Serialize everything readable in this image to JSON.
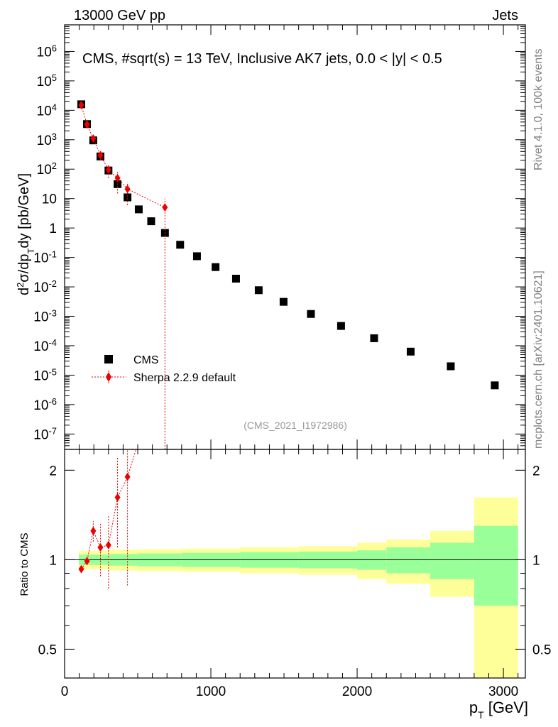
{
  "header": {
    "left": "13000 GeV pp",
    "right": "Jets",
    "side_top": "Rivet 4.1.0,  100k events",
    "side_bottom": "mcplots.cern.ch [arXiv:2401.10621]"
  },
  "colors": {
    "cms": "#000000",
    "sherpa": "#ee0000",
    "band_inner": "#99ff99",
    "band_outer": "#ffff99"
  },
  "chart_data": {
    "type": "scatter",
    "title": "CMS, #sqrt(s) = 13 TeV, Inclusive AK7 jets, 0.0 < |y| < 0.5",
    "analysis_label": "(CMS_2021_I1972986)",
    "ylabel_top": "d²σ/dp_T dy [pb/GeV]",
    "ylabel_ratio": "Ratio to CMS",
    "xlabel": "p_T [GeV]",
    "xlim": [
      0,
      3150
    ],
    "ylim_top": [
      3e-08,
      8000000.0
    ],
    "ylim_ratio": [
      0.4,
      2.35
    ],
    "x_ticks": [
      "0",
      "1000",
      "2000",
      "3000"
    ],
    "ratio_ticks": [
      "0.5",
      "1",
      "2"
    ],
    "y_tick_labels": [
      "10^-7",
      "10^-6",
      "10^-5",
      "10^-4",
      "10^-3",
      "10^-2",
      "10^-1",
      "1",
      "10",
      "10^2",
      "10^3",
      "10^4",
      "10^5",
      "10^6"
    ],
    "legend": [
      "CMS",
      "Sherpa 2.2.9 default"
    ],
    "series": [
      {
        "name": "CMS",
        "x": [
          114,
          153,
          196,
          245,
          300,
          362,
          430,
          507,
          592,
          686,
          790,
          905,
          1032,
          1172,
          1327,
          1497,
          1684,
          1890,
          2116,
          2366,
          2640,
          2941
        ],
        "y": [
          16000,
          3400,
          950,
          270,
          90,
          31,
          11,
          4.3,
          1.7,
          0.68,
          0.27,
          0.11,
          0.047,
          0.019,
          0.0077,
          0.0031,
          0.0012,
          0.00047,
          0.00018,
          6.3e-05,
          2e-05,
          4.5e-06
        ]
      },
      {
        "name": "Sherpa 2.2.9 default",
        "x": [
          114,
          153,
          196,
          245,
          300,
          362,
          430,
          686
        ],
        "y": [
          15000,
          3300,
          1100,
          300,
          95,
          50,
          21,
          5.0
        ],
        "y_err_low": [
          13000,
          2900,
          900,
          200,
          50,
          15,
          6,
          0
        ],
        "y_err_high": [
          17000,
          3700,
          1300,
          400,
          140,
          80,
          36,
          10
        ]
      },
      {
        "name": "Sherpa 2.2.9 default / CMS",
        "x": [
          114,
          153,
          196,
          245,
          300,
          362,
          430
        ],
        "y": [
          0.93,
          0.99,
          1.25,
          1.1,
          1.12,
          1.62,
          1.9
        ],
        "y_err_low": [
          0.91,
          0.96,
          1.15,
          0.88,
          0.8,
          1.1,
          0.82
        ],
        "y_err_high": [
          0.95,
          1.02,
          1.35,
          1.32,
          1.4,
          2.2,
          2.4
        ]
      }
    ],
    "ratio_band": {
      "edges": [
        97,
        300,
        500,
        800,
        1200,
        1600,
        2000,
        2200,
        2500,
        2800,
        3100
      ],
      "inner_half": [
        0.04,
        0.045,
        0.05,
        0.055,
        0.06,
        0.065,
        0.075,
        0.1,
        0.14,
        0.3
      ],
      "outer_half": [
        0.07,
        0.08,
        0.085,
        0.09,
        0.1,
        0.11,
        0.14,
        0.17,
        0.25,
        0.62
      ]
    }
  }
}
